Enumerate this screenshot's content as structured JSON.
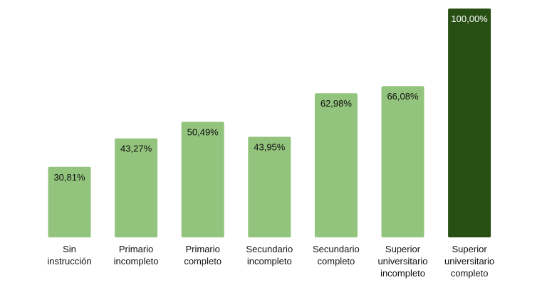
{
  "chart_data": {
    "type": "bar",
    "categories": [
      [
        "Sin",
        "instrucción"
      ],
      [
        "Primario",
        "incompleto"
      ],
      [
        "Primario",
        "completo"
      ],
      [
        "Secundario",
        "incompleto"
      ],
      [
        "Secundario",
        "completo"
      ],
      [
        "Superior",
        "universitario",
        "incompleto"
      ],
      [
        "Superior",
        "universitario",
        "completo"
      ]
    ],
    "values": [
      30.81,
      43.27,
      50.49,
      43.95,
      62.98,
      66.08,
      100.0
    ],
    "value_labels": [
      "30,81%",
      "43,27%",
      "50,49%",
      "43,95%",
      "62,98%",
      "66,08%",
      "100,00%"
    ],
    "ylim": [
      0,
      100
    ],
    "grid": false,
    "legend": "none",
    "colors": {
      "bar": "#93c47d",
      "highlight_bar": "#274e13",
      "label_dark": "#111111",
      "label_light": "#ffffff"
    },
    "highlight_index": 6
  }
}
